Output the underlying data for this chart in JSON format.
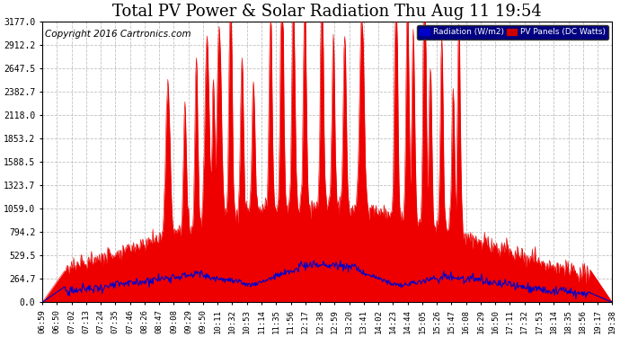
{
  "title": "Total PV Power & Solar Radiation Thu Aug 11 19:54",
  "copyright": "Copyright 2016 Cartronics.com",
  "legend_labels": [
    "Radiation (W/m2)",
    "PV Panels (DC Watts)"
  ],
  "legend_colors": [
    "#0000cc",
    "#cc0000"
  ],
  "yticks": [
    0.0,
    264.7,
    529.5,
    794.2,
    1059.0,
    1323.7,
    1588.5,
    1853.2,
    2118.0,
    2382.7,
    2647.5,
    2912.2,
    3177.0
  ],
  "ymax": 3177.0,
  "ymin": 0.0,
  "bg_color": "#ffffff",
  "plot_bg_color": "#ffffff",
  "grid_color": "#bbbbbb",
  "red_fill_color": "#ee0000",
  "blue_line_color": "#0000cc",
  "xtick_labels": [
    "06:59",
    "06:50",
    "07:02",
    "07:13",
    "07:24",
    "07:35",
    "07:46",
    "08:26",
    "08:47",
    "09:08",
    "09:29",
    "09:50",
    "10:11",
    "10:32",
    "10:53",
    "11:14",
    "11:35",
    "11:56",
    "12:17",
    "12:38",
    "12:59",
    "13:20",
    "13:41",
    "14:02",
    "14:23",
    "14:44",
    "15:05",
    "15:26",
    "15:47",
    "16:08",
    "16:29",
    "16:50",
    "17:11",
    "17:32",
    "17:53",
    "18:14",
    "18:35",
    "18:56",
    "19:17",
    "19:38"
  ],
  "title_fontsize": 13,
  "axis_fontsize": 7,
  "copyright_fontsize": 7.5
}
